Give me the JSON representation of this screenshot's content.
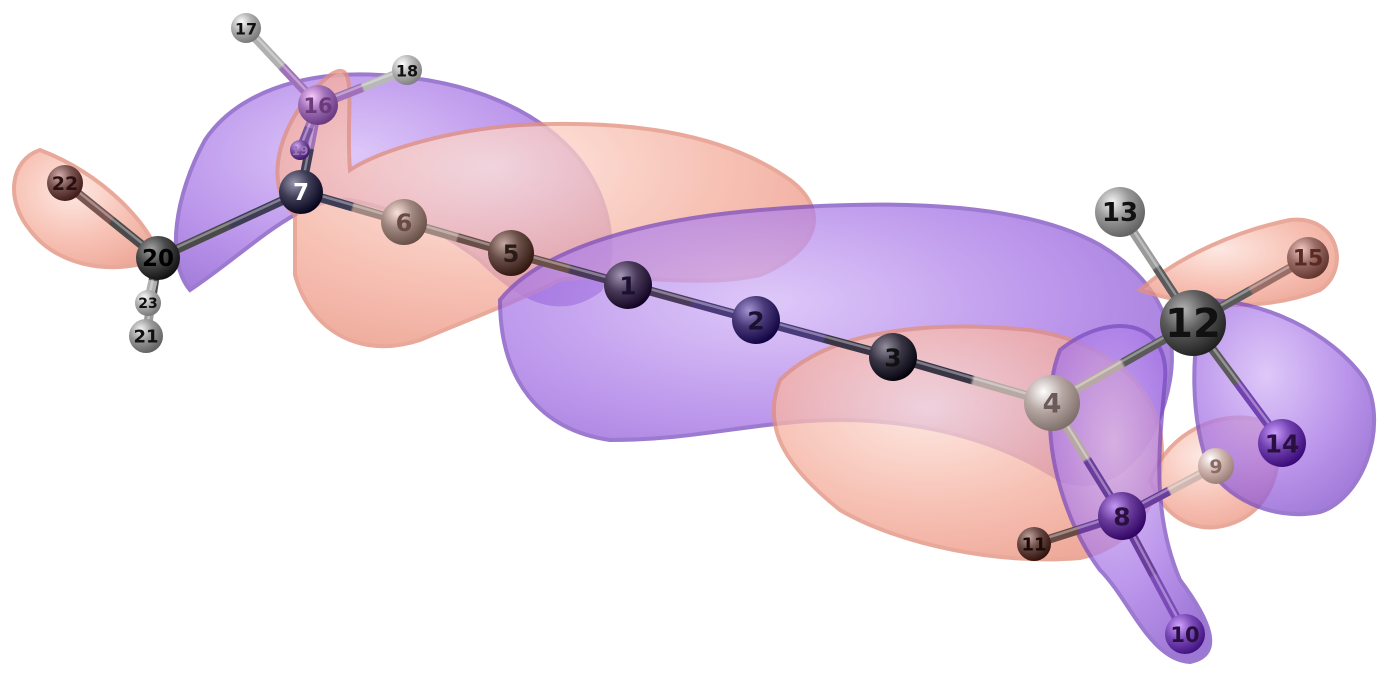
{
  "colors": {
    "positive_lobe": "#f5a897",
    "negative_lobe": "#a775e6",
    "background": "#ffffff"
  },
  "atoms": [
    {
      "id": "1",
      "label": "1",
      "color": "#4a3a5a",
      "r": 24,
      "label_color": "#1a1030"
    },
    {
      "id": "2",
      "label": "2",
      "color": "#4a3a7a",
      "r": 24,
      "label_color": "#1a1030"
    },
    {
      "id": "3",
      "label": "3",
      "color": "#3a3545",
      "r": 24,
      "label_color": "#111111"
    },
    {
      "id": "4",
      "label": "4",
      "color": "#b7a8a4",
      "r": 28,
      "label_color": "#6a5a58"
    },
    {
      "id": "5",
      "label": "5",
      "color": "#6a4e48",
      "r": 23,
      "label_color": "#2a1a18"
    },
    {
      "id": "6",
      "label": "6",
      "color": "#a08880",
      "r": 23,
      "label_color": "#6a4a44"
    },
    {
      "id": "7",
      "label": "7",
      "color": "#3e3d55",
      "r": 22,
      "label_color": "#ffffff"
    },
    {
      "id": "8",
      "label": "8",
      "color": "#6a3c9c",
      "r": 24,
      "label_color": "#2a1040"
    },
    {
      "id": "9",
      "label": "9",
      "color": "#d2b7b0",
      "r": 18,
      "label_color": "#8a6a64"
    },
    {
      "id": "10",
      "label": "10",
      "color": "#7a4ab8",
      "r": 20,
      "label_color": "#2a1040"
    },
    {
      "id": "11",
      "label": "11",
      "color": "#6a4a44",
      "r": 17,
      "label_color": "#1a0a08"
    },
    {
      "id": "12",
      "label": "12",
      "color": "#5a5a5a",
      "r": 33,
      "label_color": "#111111"
    },
    {
      "id": "13",
      "label": "13",
      "color": "#9a9a9a",
      "r": 25,
      "label_color": "#111111"
    },
    {
      "id": "14",
      "label": "14",
      "color": "#7242b0",
      "r": 24,
      "label_color": "#2a1040"
    },
    {
      "id": "15",
      "label": "15",
      "color": "#9a6e66",
      "r": 21,
      "label_color": "#5a2a22"
    },
    {
      "id": "16",
      "label": "16",
      "color": "#a070b8",
      "r": 20,
      "label_color": "#6a3a7a"
    },
    {
      "id": "17",
      "label": "17",
      "color": "#b0b0b0",
      "r": 15,
      "label_color": "#111111"
    },
    {
      "id": "18",
      "label": "18",
      "color": "#b8b8b8",
      "r": 15,
      "label_color": "#111111"
    },
    {
      "id": "19",
      "label": "19",
      "color": "#7a50a0",
      "r": 10,
      "label_color": "#9a78b8"
    },
    {
      "id": "20",
      "label": "20",
      "color": "#4a4a4a",
      "r": 22,
      "label_color": "#000000"
    },
    {
      "id": "21",
      "label": "21",
      "color": "#9a9a9a",
      "r": 17,
      "label_color": "#111111"
    },
    {
      "id": "22",
      "label": "22",
      "color": "#7a5450",
      "r": 18,
      "label_color": "#2a1010"
    },
    {
      "id": "23",
      "label": "23",
      "color": "#b0b0b0",
      "r": 13,
      "label_color": "#111111"
    }
  ],
  "bonds": [
    [
      "1",
      "2"
    ],
    [
      "2",
      "3"
    ],
    [
      "3",
      "4"
    ],
    [
      "1",
      "5"
    ],
    [
      "5",
      "6"
    ],
    [
      "6",
      "7"
    ],
    [
      "4",
      "12"
    ],
    [
      "4",
      "8"
    ],
    [
      "8",
      "9"
    ],
    [
      "8",
      "10"
    ],
    [
      "8",
      "11"
    ],
    [
      "12",
      "13"
    ],
    [
      "12",
      "14"
    ],
    [
      "12",
      "15"
    ],
    [
      "7",
      "16"
    ],
    [
      "7",
      "20"
    ],
    [
      "16",
      "17"
    ],
    [
      "16",
      "18"
    ],
    [
      "16",
      "19"
    ],
    [
      "20",
      "21"
    ],
    [
      "20",
      "22"
    ],
    [
      "20",
      "23"
    ]
  ]
}
